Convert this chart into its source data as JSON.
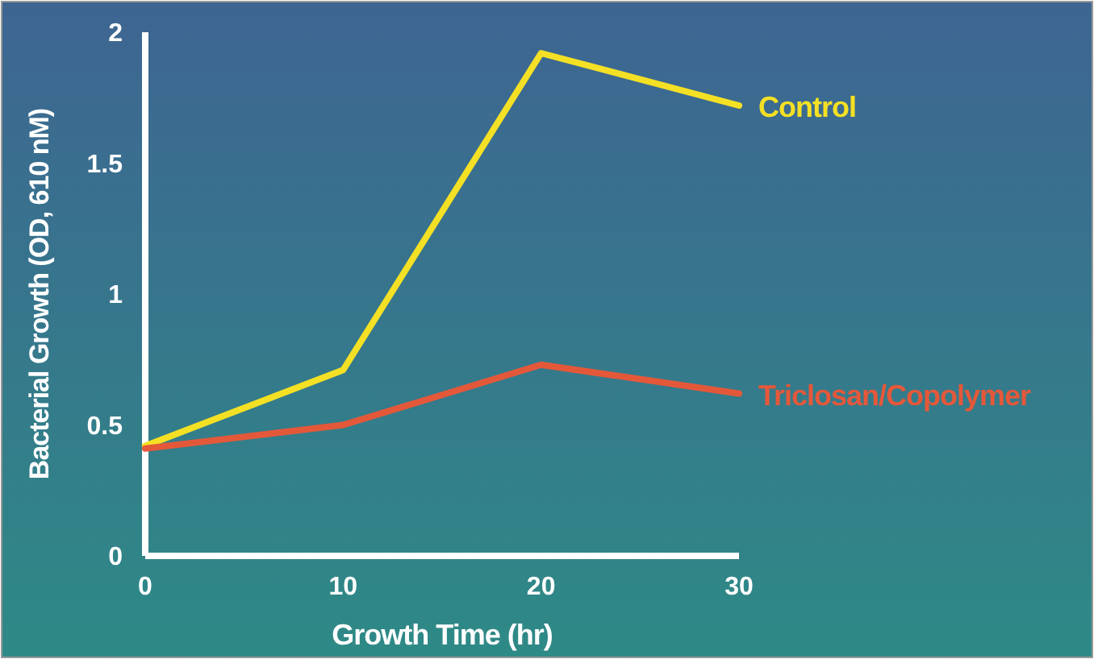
{
  "chart_data": {
    "type": "line",
    "xlabel": "Growth Time (hr)",
    "ylabel": "Bacterial Growth (OD, 610 nM)",
    "x": [
      0,
      10,
      20,
      30
    ],
    "xlim": [
      0,
      30
    ],
    "xticks": [
      0,
      10,
      20,
      30
    ],
    "ylim": [
      0,
      2
    ],
    "yticks": [
      0,
      0.5,
      1,
      1.5,
      2
    ],
    "grid": false,
    "legend": false,
    "marker": "none",
    "line_style": "solid",
    "series": [
      {
        "name": "Control",
        "color": "#f4e024",
        "values": [
          0.42,
          0.71,
          1.92,
          1.72
        ]
      },
      {
        "name": "Triclosan/Copolymer",
        "color": "#e4583a",
        "values": [
          0.41,
          0.5,
          0.73,
          0.62
        ]
      }
    ]
  }
}
